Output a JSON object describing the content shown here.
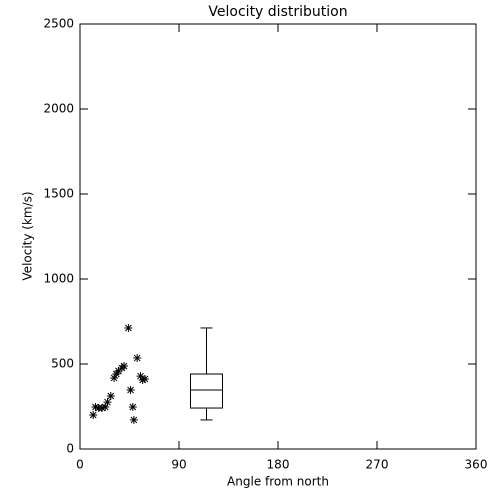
{
  "chart_data": {
    "type": "scatter-box",
    "title": "Velocity distribution",
    "x_label": "Angle from north",
    "y_label": "Velocity (km/s)",
    "xlim": [
      0,
      360
    ],
    "xticks": [
      0,
      90,
      180,
      270,
      360
    ],
    "ylim": [
      0,
      2500
    ],
    "yticks": [
      0,
      500,
      1000,
      1500,
      2000,
      2500
    ],
    "color": "#000000",
    "x": [
      12,
      14,
      17,
      20,
      23,
      25,
      28,
      31,
      33,
      35,
      38,
      40,
      44,
      46,
      48,
      49,
      52,
      55,
      57,
      59
    ],
    "values": [
      200,
      247,
      241,
      241,
      247,
      276,
      312,
      418,
      441,
      459,
      476,
      488,
      712,
      347,
      247,
      171,
      535,
      429,
      406,
      412
    ],
    "box": {
      "position": 115,
      "whisker_low": 171,
      "q1": 241,
      "median": 347,
      "q3": 441,
      "whisker_high": 712
    }
  }
}
